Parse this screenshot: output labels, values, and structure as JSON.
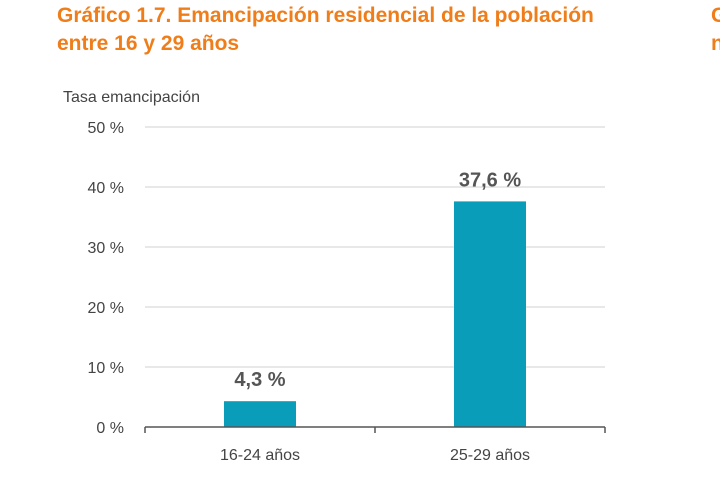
{
  "title": "Gráfico 1.7. Emancipación residencial de la población entre 16 y 29 años",
  "next_title_fragment": [
    "G",
    "n"
  ],
  "chart_data": {
    "type": "bar",
    "title": "Gráfico 1.7. Emancipación residencial de la población entre 16 y 29 años",
    "ylabel": "Tasa emancipación",
    "xlabel": "",
    "categories": [
      "16-24 años",
      "25-29 años"
    ],
    "values": [
      4.3,
      37.6
    ],
    "data_labels": [
      "4,3 %",
      "37,6 %"
    ],
    "ylim": [
      0,
      50
    ],
    "yticks": [
      0,
      10,
      20,
      30,
      40,
      50
    ],
    "ytick_labels": [
      "0 %",
      "10 %",
      "20 %",
      "30 %",
      "40 %",
      "50 %"
    ],
    "grid": true,
    "bar_color": "#0A9DBA",
    "title_color": "#EF7D1A"
  }
}
